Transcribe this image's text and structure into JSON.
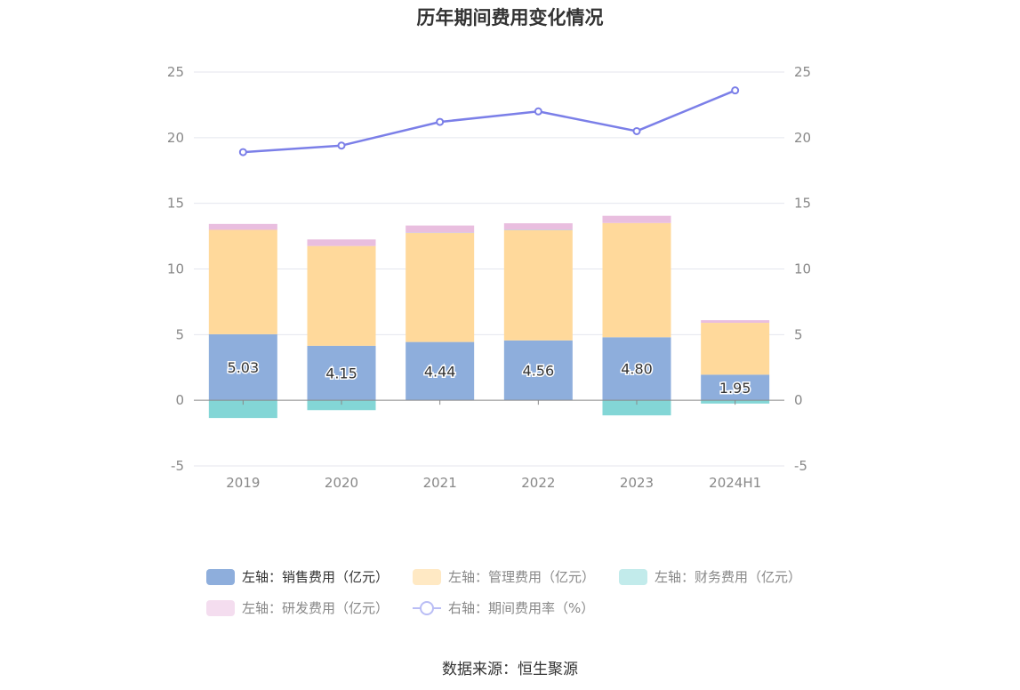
{
  "chart_data": {
    "type": "bar",
    "title": "历年期间费用变化情况",
    "categories": [
      "2019",
      "2020",
      "2021",
      "2022",
      "2023",
      "2024H1"
    ],
    "y_left": {
      "min": -5,
      "max": 25,
      "ticks": [
        -5,
        0,
        5,
        10,
        15,
        20,
        25
      ]
    },
    "y_right": {
      "min": -5,
      "max": 25,
      "ticks": [
        -5,
        0,
        5,
        10,
        15,
        20,
        25
      ]
    },
    "series": [
      {
        "name": "左轴：销售费用（亿元）",
        "kind": "bar",
        "stack": "a",
        "color": "#8eaedc",
        "values": [
          5.03,
          4.15,
          4.44,
          4.56,
          4.8,
          1.95
        ],
        "labels": [
          "5.03",
          "4.15",
          "4.44",
          "4.56",
          "4.80",
          "1.95"
        ]
      },
      {
        "name": "左轴：管理费用（亿元）",
        "kind": "bar",
        "stack": "a",
        "color": "#ffd99b",
        "values": [
          7.95,
          7.6,
          8.3,
          8.4,
          8.7,
          3.95
        ]
      },
      {
        "name": "左轴：财务费用（亿元）",
        "kind": "bar",
        "stack": "a",
        "color": "#83d6d6",
        "values": [
          -1.35,
          -0.75,
          0.02,
          0.02,
          -1.15,
          -0.25
        ]
      },
      {
        "name": "左轴：研发费用（亿元）",
        "kind": "bar",
        "stack": "a",
        "color": "#e9bedf",
        "values": [
          0.45,
          0.5,
          0.55,
          0.5,
          0.55,
          0.2
        ]
      },
      {
        "name": "右轴：期间费用率（%）",
        "kind": "line",
        "axis": "right",
        "color": "#7b7fe8",
        "values": [
          18.9,
          19.4,
          21.2,
          22.0,
          20.5,
          23.6
        ]
      }
    ],
    "grid": true,
    "legend_position": "bottom"
  },
  "source": "数据来源：恒生聚源"
}
